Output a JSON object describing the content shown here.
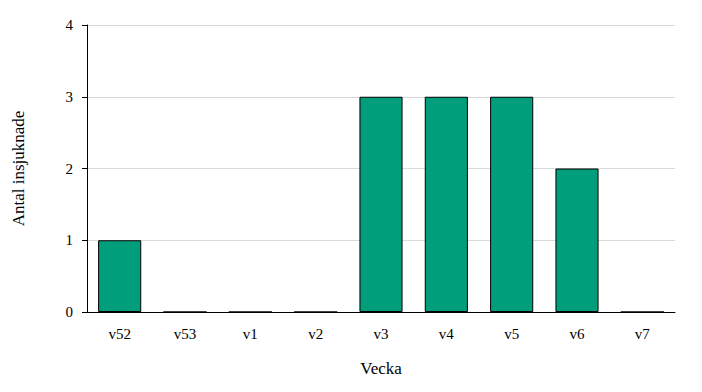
{
  "chart_data": {
    "type": "bar",
    "x_label": "Vecka",
    "y_label": "Antal insjuknade",
    "categories": [
      "v52",
      "v53",
      "v1",
      "v2",
      "v3",
      "v4",
      "v5",
      "v6",
      "v7"
    ],
    "values": [
      1,
      0,
      0,
      0,
      3,
      3,
      3,
      2,
      0
    ],
    "color": "#009e7a",
    "ylim": [
      0,
      4
    ],
    "yticks": [
      0,
      1,
      2,
      3,
      4
    ],
    "grid": true
  }
}
